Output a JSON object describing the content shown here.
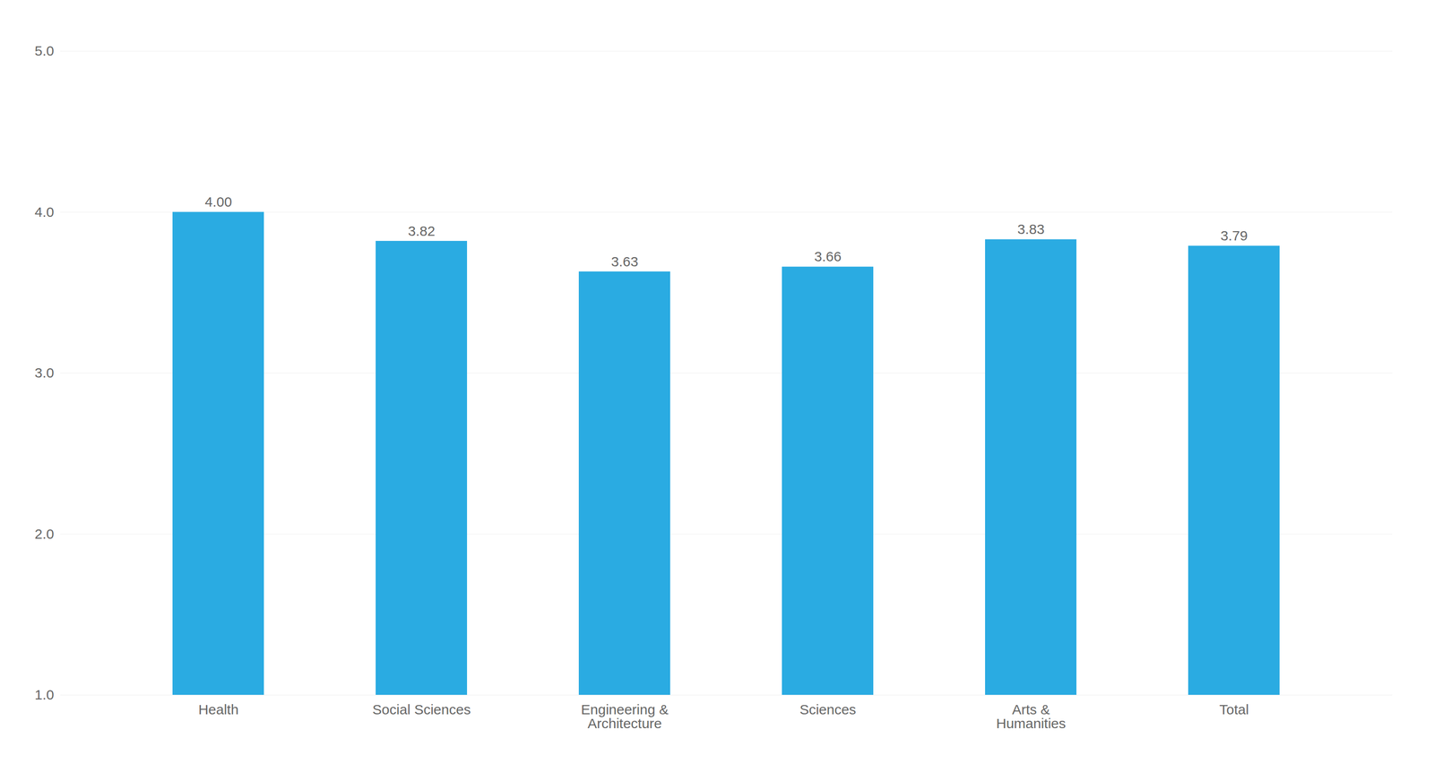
{
  "chart_data": {
    "type": "bar",
    "categories": [
      "Health",
      "Social Sciences",
      "Engineering &\nArchitecture",
      "Sciences",
      "Arts &\nHumanities",
      "Total"
    ],
    "values": [
      4.0,
      3.82,
      3.63,
      3.66,
      3.83,
      3.79
    ],
    "value_labels": [
      "4.00",
      "3.82",
      "3.63",
      "3.66",
      "3.83",
      "3.79"
    ],
    "data_labels": true,
    "color": "#2AABE2",
    "ylim": [
      1,
      5
    ],
    "yticks": [
      1,
      2,
      3,
      4,
      5
    ],
    "grid": true
  }
}
